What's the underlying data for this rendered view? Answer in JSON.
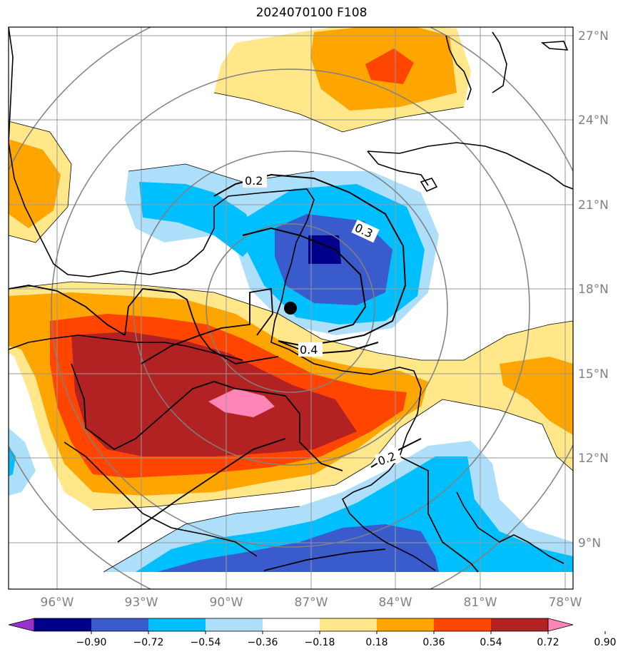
{
  "title": "2024070100 F108",
  "map": {
    "lon_labels": [
      "96°W",
      "93°W",
      "90°W",
      "87°W",
      "84°W",
      "81°W",
      "78°W"
    ],
    "lat_labels": [
      "27°N",
      "24°N",
      "21°N",
      "18°N",
      "15°N",
      "12°N",
      "9°N"
    ],
    "contour_labels": [
      "0.2",
      "0.3",
      "0.4",
      "0.2"
    ],
    "marker": {
      "lon": -87.7,
      "lat": 17.3
    },
    "extent": {
      "lon": [
        -97.7,
        -77.7
      ],
      "lat": [
        7.5,
        27.5
      ]
    }
  },
  "colorbar": {
    "ticks": [
      "−0.90",
      "−0.72",
      "−0.54",
      "−0.36",
      "−0.18",
      "0.18",
      "0.36",
      "0.54",
      "0.72",
      "0.90"
    ],
    "colors": [
      "#9932CC",
      "#00008B",
      "#3A5BCC",
      "#00BFFF",
      "#ADDFFA",
      "#FFFFFF",
      "#FFE78A",
      "#FFA500",
      "#FF4500",
      "#B22222",
      "#FF85B8"
    ]
  },
  "colors": {
    "grid": "#999999",
    "coast": "#000000",
    "range_ring": "#808080"
  }
}
